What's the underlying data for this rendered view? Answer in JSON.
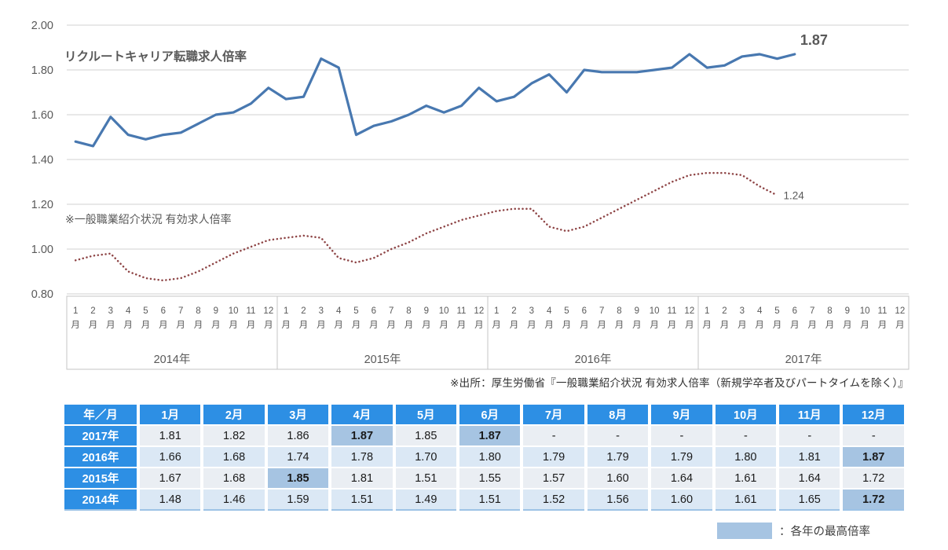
{
  "chart": {
    "title": "リクルートキャリア転職求人倍率",
    "secondary_series_label": "※一般職業紹介状況 有効求人倍率",
    "annotations": {
      "primary_end": "1.87",
      "secondary_end": "1.24"
    },
    "y_ticks": [
      "2.00",
      "1.80",
      "1.60",
      "1.40",
      "1.20",
      "1.00",
      "0.80"
    ],
    "month_numbers": [
      "1",
      "2",
      "3",
      "4",
      "5",
      "6",
      "7",
      "8",
      "9",
      "10",
      "11",
      "12"
    ],
    "month_suffix": "月",
    "year_labels": [
      "2014年",
      "2015年",
      "2016年",
      "2017年"
    ],
    "colors": {
      "primary_line": "#4878B0",
      "secondary_line": "#8E4546",
      "title": "#1F4E79",
      "secondary_label": "#9E4B45",
      "axis_text": "#595959",
      "gridline": "#D9D9D9",
      "box_border": "#C6C6C6",
      "annotation_primary": "#333333",
      "annotation_secondary": "#595959"
    }
  },
  "chart_data": {
    "type": "line",
    "x_unit": "month",
    "x_start": "2014-01",
    "ylim": [
      0.8,
      2.0
    ],
    "ytick_step": 0.2,
    "grid": true,
    "series": [
      {
        "name": "リクルートキャリア転職求人倍率",
        "style": "solid",
        "color": "#4878B0",
        "values": [
          1.48,
          1.46,
          1.59,
          1.51,
          1.49,
          1.51,
          1.52,
          1.56,
          1.6,
          1.61,
          1.65,
          1.72,
          1.67,
          1.68,
          1.85,
          1.81,
          1.51,
          1.55,
          1.57,
          1.6,
          1.64,
          1.61,
          1.64,
          1.72,
          1.66,
          1.68,
          1.74,
          1.78,
          1.7,
          1.8,
          1.79,
          1.79,
          1.79,
          1.8,
          1.81,
          1.87,
          1.81,
          1.82,
          1.86,
          1.87,
          1.85,
          1.87
        ]
      },
      {
        "name": "一般職業紹介状況 有効求人倍率",
        "style": "dotted",
        "color": "#8E4546",
        "values": [
          0.95,
          0.97,
          0.98,
          0.9,
          0.87,
          0.86,
          0.87,
          0.9,
          0.94,
          0.98,
          1.01,
          1.04,
          1.05,
          1.06,
          1.05,
          0.96,
          0.94,
          0.96,
          1.0,
          1.03,
          1.07,
          1.1,
          1.13,
          1.15,
          1.17,
          1.18,
          1.18,
          1.1,
          1.08,
          1.1,
          1.14,
          1.18,
          1.22,
          1.26,
          1.3,
          1.33,
          1.34,
          1.34,
          1.33,
          1.28,
          1.24
        ]
      }
    ]
  },
  "source_note": "※出所：厚生労働省『一般職業紹介状況 有効求人倍率（新規学卒者及びパートタイムを除く）』",
  "table": {
    "corner_header": "年／月",
    "col_headers": [
      "1月",
      "2月",
      "3月",
      "4月",
      "5月",
      "6月",
      "7月",
      "8月",
      "9月",
      "10月",
      "11月",
      "12月"
    ],
    "rows": [
      {
        "year": "2017年",
        "values": [
          "1.81",
          "1.82",
          "1.86",
          "1.87",
          "1.85",
          "1.87",
          "-",
          "-",
          "-",
          "-",
          "-",
          "-"
        ],
        "highlights": [
          3,
          5
        ]
      },
      {
        "year": "2016年",
        "values": [
          "1.66",
          "1.68",
          "1.74",
          "1.78",
          "1.70",
          "1.80",
          "1.79",
          "1.79",
          "1.79",
          "1.80",
          "1.81",
          "1.87"
        ],
        "highlights": [
          11
        ]
      },
      {
        "year": "2015年",
        "values": [
          "1.67",
          "1.68",
          "1.85",
          "1.81",
          "1.51",
          "1.55",
          "1.57",
          "1.60",
          "1.64",
          "1.61",
          "1.64",
          "1.72"
        ],
        "highlights": [
          2
        ]
      },
      {
        "year": "2014年",
        "values": [
          "1.48",
          "1.46",
          "1.59",
          "1.51",
          "1.49",
          "1.51",
          "1.52",
          "1.56",
          "1.60",
          "1.61",
          "1.65",
          "1.72"
        ],
        "highlights": [
          11
        ]
      }
    ]
  },
  "legend": {
    "label": "：各年の最高倍率",
    "swatch_color": "#A6C4E2",
    "header_color": "#2D8FE4"
  }
}
